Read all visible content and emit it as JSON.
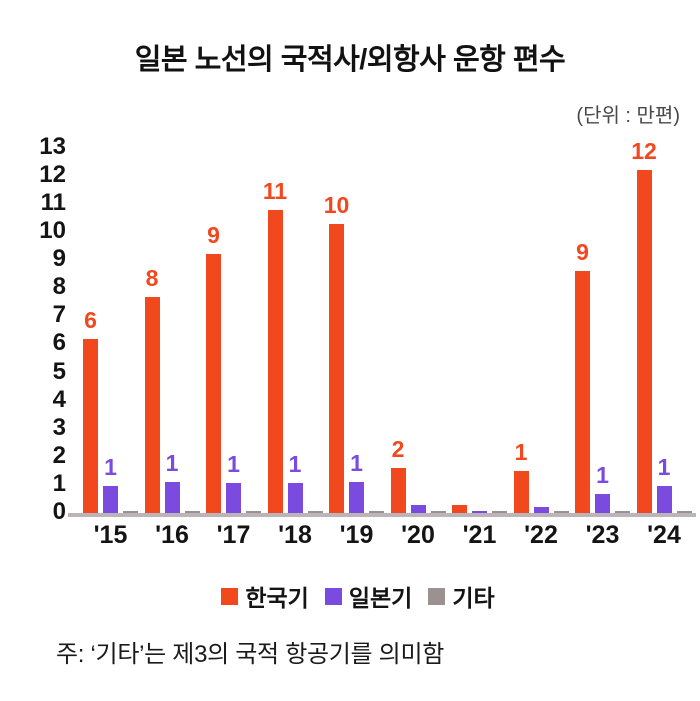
{
  "title": "일본 노선의 국적사/외항사 운항 편수",
  "unit_label": "(단위 : 만편)",
  "footnote": "주: ‘기타’는 제3의 국적 항공기를 의미함",
  "colors": {
    "korean": "#f2481d",
    "japanese": "#7b4be0",
    "other": "#9b9191",
    "axis_line": "#bbb5b9",
    "text": "#141414",
    "unit_text": "#4b4749"
  },
  "chart_data": {
    "type": "bar",
    "title": "일본 노선의 국적사/외항사 운항 편수",
    "unit": "만편",
    "categories": [
      "'15",
      "'16",
      "'17",
      "'18",
      "'19",
      "'20",
      "'21",
      "'22",
      "'23",
      "'24"
    ],
    "series": [
      {
        "name": "한국기",
        "color": "#f2481d",
        "values": [
          6.2,
          7.7,
          9.2,
          10.8,
          10.3,
          1.6,
          0.3,
          1.5,
          8.6,
          12.2
        ],
        "labels": [
          "6",
          "8",
          "9",
          "11",
          "10",
          "2",
          "",
          "1",
          "9",
          "12"
        ]
      },
      {
        "name": "일본기",
        "color": "#7b4be0",
        "values": [
          0.95,
          1.1,
          1.05,
          1.05,
          1.1,
          0.3,
          0.08,
          0.2,
          0.67,
          0.95
        ],
        "labels": [
          "1",
          "1",
          "1",
          "1",
          "1",
          "",
          "",
          "",
          "1",
          "1"
        ]
      },
      {
        "name": "기타",
        "color": "#9b9191",
        "values": [
          0.08,
          0.08,
          0.08,
          0.08,
          0.08,
          0.08,
          0.08,
          0.08,
          0.08,
          0.08
        ],
        "labels": [
          "",
          "",
          "",
          "",
          "",
          "",
          "",
          "",
          "",
          ""
        ]
      }
    ],
    "y_ticks": [
      "0",
      "1",
      "2",
      "3",
      "4",
      "5",
      "6",
      "7",
      "8",
      "9",
      "10",
      "11",
      "12",
      "13"
    ],
    "ylim": [
      0,
      13
    ],
    "xlabel": "",
    "ylabel": "",
    "grid": false,
    "legend_position": "bottom"
  }
}
